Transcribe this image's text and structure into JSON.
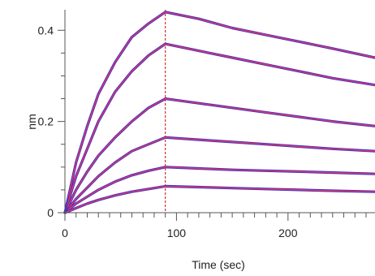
{
  "chart_data": {
    "type": "line",
    "xlabel": "Time (sec)",
    "ylabel": "nm",
    "xlim": [
      0,
      278
    ],
    "ylim": [
      0,
      0.445
    ],
    "x_ticks": [
      0,
      100,
      200
    ],
    "x_tick_labels": [
      "0",
      "100",
      "200"
    ],
    "y_ticks": [
      0,
      0.2,
      0.4
    ],
    "y_tick_labels": [
      "0",
      "0.2",
      "0.4"
    ],
    "grid": false,
    "association_end_x": 90,
    "colors": {
      "data": "#3b2fd9",
      "fit": "#ff3b3b",
      "marker": "#cc3333",
      "axis": "#555555"
    },
    "series": [
      {
        "x": [
          0,
          10,
          20,
          30,
          45,
          60,
          75,
          90,
          120,
          150,
          180,
          210,
          240,
          278
        ],
        "values": [
          0,
          0.11,
          0.19,
          0.26,
          0.33,
          0.385,
          0.415,
          0.44,
          0.425,
          0.405,
          0.39,
          0.375,
          0.36,
          0.34
        ]
      },
      {
        "x": [
          0,
          10,
          20,
          30,
          45,
          60,
          75,
          90,
          120,
          150,
          180,
          210,
          240,
          278
        ],
        "values": [
          0,
          0.08,
          0.14,
          0.2,
          0.265,
          0.31,
          0.345,
          0.37,
          0.355,
          0.34,
          0.325,
          0.31,
          0.295,
          0.28
        ]
      },
      {
        "x": [
          0,
          10,
          20,
          30,
          45,
          60,
          75,
          90,
          120,
          150,
          180,
          210,
          240,
          278
        ],
        "values": [
          0,
          0.05,
          0.09,
          0.125,
          0.165,
          0.2,
          0.23,
          0.25,
          0.24,
          0.23,
          0.22,
          0.21,
          0.2,
          0.19
        ]
      },
      {
        "x": [
          0,
          10,
          20,
          30,
          45,
          60,
          75,
          90,
          120,
          150,
          180,
          210,
          240,
          278
        ],
        "values": [
          0,
          0.03,
          0.055,
          0.08,
          0.11,
          0.135,
          0.15,
          0.165,
          0.16,
          0.155,
          0.15,
          0.145,
          0.14,
          0.135
        ]
      },
      {
        "x": [
          0,
          10,
          20,
          30,
          45,
          60,
          75,
          90,
          120,
          150,
          180,
          210,
          240,
          278
        ],
        "values": [
          0,
          0.02,
          0.035,
          0.05,
          0.068,
          0.082,
          0.092,
          0.1,
          0.097,
          0.094,
          0.092,
          0.09,
          0.088,
          0.085
        ]
      },
      {
        "x": [
          0,
          10,
          20,
          30,
          45,
          60,
          75,
          90,
          120,
          150,
          180,
          210,
          240,
          278
        ],
        "values": [
          0,
          0.01,
          0.02,
          0.028,
          0.038,
          0.046,
          0.052,
          0.058,
          0.056,
          0.054,
          0.052,
          0.05,
          0.048,
          0.046
        ]
      }
    ]
  }
}
